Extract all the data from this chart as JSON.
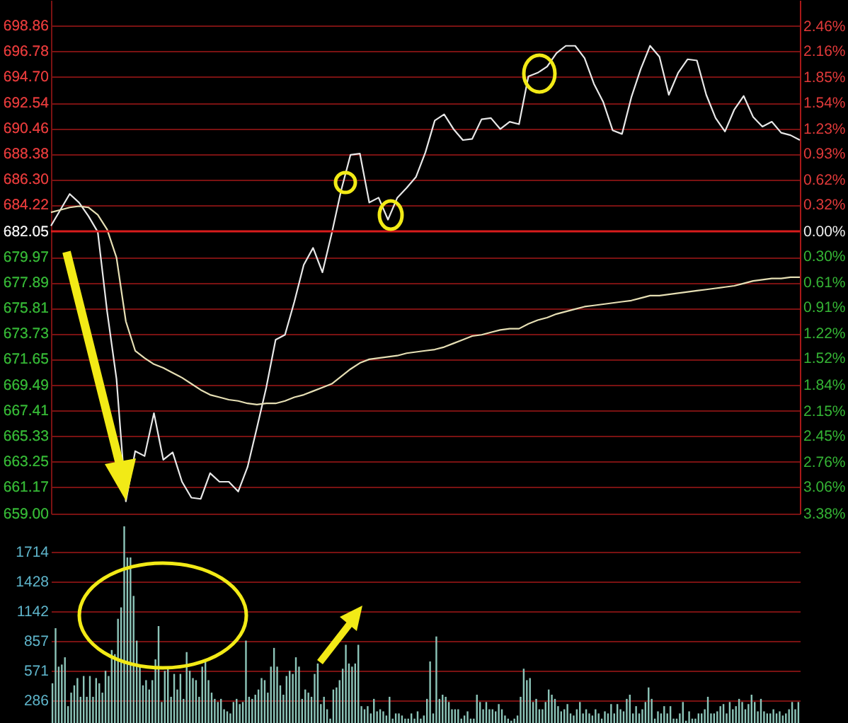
{
  "chart_data": [
    {
      "type": "line",
      "ylim": [
        659,
        700.94
      ],
      "categories": [
        null,
        null,
        null,
        null,
        null,
        null,
        null,
        null,
        null,
        null,
        null,
        null,
        null,
        null,
        null,
        null,
        null,
        null,
        null,
        null,
        null,
        null,
        null,
        null,
        null,
        null,
        null,
        null,
        null,
        null,
        null,
        null,
        null,
        null,
        null,
        null,
        null,
        null,
        null,
        null,
        null,
        null,
        null,
        null,
        null,
        null,
        null,
        null,
        null,
        null,
        null,
        null,
        null,
        null,
        null,
        null,
        null,
        null,
        null,
        null,
        null,
        null,
        null,
        null,
        null,
        null,
        null,
        null,
        null,
        null,
        null,
        null,
        null,
        null,
        null,
        null,
        null,
        null,
        null,
        null,
        null
      ],
      "yticks": [
        {
          "value": 659,
          "label": "659.00"
        },
        661.17,
        663.25,
        665.33,
        667.41,
        669.49,
        671.65,
        673.73,
        675.81,
        677.89,
        679.97,
        682.05,
        684.22,
        {
          "value": 686.3,
          "label": "686.30"
        },
        688.38,
        690.46,
        692.54,
        {
          "value": 694.7,
          "label": "694.70"
        },
        696.78,
        698.86
      ],
      "y2lim": [
        -3.38,
        2.77
      ],
      "y2ticks": [
        {
          "value": -3.38,
          "label": "3.38%"
        },
        {
          "value": -3.06,
          "label": "3.06%"
        },
        {
          "value": -2.76,
          "label": "2.76%"
        },
        {
          "value": -2.45,
          "label": "2.45%"
        },
        {
          "value": -2.15,
          "label": "2.15%"
        },
        {
          "value": -1.84,
          "label": "1.84%"
        },
        {
          "value": -1.52,
          "label": "1.52%"
        },
        {
          "value": -1.22,
          "label": "1.22%"
        },
        {
          "value": -0.91,
          "label": "0.91%"
        },
        {
          "value": -0.61,
          "label": "0.61%"
        },
        {
          "value": -0.3,
          "label": "0.30%"
        },
        {
          "value": 0,
          "label": "0.00%"
        },
        {
          "value": 0.32,
          "label": "0.32%"
        },
        {
          "value": 0.62,
          "label": "0.62%"
        },
        {
          "value": 0.93,
          "label": "0.93%"
        },
        {
          "value": 1.23,
          "label": "1.23%"
        },
        {
          "value": 1.54,
          "label": "1.54%"
        },
        {
          "value": 1.85,
          "label": "1.85%"
        },
        {
          "value": 2.16,
          "label": "2.16%"
        },
        {
          "value": 2.46,
          "label": "2.46%"
        }
      ],
      "grid": "y",
      "tick_labels": "y",
      "ref_lines": [
        {
          "axis": "y",
          "value": 682.05,
          "color": "#d81c1c"
        }
      ],
      "series": [
        {
          "color": "#e8e8e8",
          "values": [
            682.5,
            683.8,
            685.1,
            684.4,
            683.3,
            682.0,
            675.5,
            670.0,
            660.0,
            664.1,
            663.7,
            667.2,
            663.4,
            664.0,
            661.6,
            660.3,
            660.2,
            662.3,
            661.6,
            661.6,
            660.8,
            662.8,
            666.0,
            669.3,
            673.2,
            673.6,
            676.3,
            679.3,
            680.7,
            678.7,
            681.9,
            685.4,
            688.3,
            688.4,
            684.4,
            684.8,
            683.0,
            684.8,
            685.6,
            686.5,
            688.5,
            691.1,
            691.6,
            690.4,
            689.5,
            689.6,
            691.2,
            691.3,
            690.4,
            691.0,
            690.8,
            694.7,
            695.0,
            695.5,
            696.6,
            697.2,
            697.2,
            696.2,
            694.1,
            692.6,
            690.3,
            690.0,
            693.0,
            695.3,
            697.2,
            696.3,
            693.2,
            695.0,
            696.1,
            696.0,
            693.2,
            691.3,
            690.2,
            692.0,
            693.1,
            691.4,
            690.6,
            691.0,
            690.1,
            689.9,
            689.5
          ]
        },
        {
          "color": "#e6dfb4",
          "values": [
            683.6,
            683.8,
            684.0,
            684.1,
            684.0,
            683.4,
            682.2,
            679.9,
            674.7,
            672.3,
            671.7,
            671.2,
            670.9,
            670.5,
            670.1,
            669.6,
            669.1,
            668.7,
            668.5,
            668.3,
            668.2,
            668.0,
            667.9,
            668.0,
            668.0,
            668.2,
            668.5,
            668.7,
            669.0,
            669.3,
            669.6,
            670.2,
            670.8,
            671.3,
            671.6,
            671.7,
            671.8,
            671.9,
            672.1,
            672.2,
            672.3,
            672.4,
            672.6,
            672.9,
            673.2,
            673.5,
            673.6,
            673.8,
            674.0,
            674.1,
            674.1,
            674.5,
            674.8,
            675.0,
            675.3,
            675.5,
            675.7,
            675.9,
            676.0,
            676.1,
            676.2,
            676.3,
            676.4,
            676.6,
            676.8,
            676.8,
            676.9,
            677.0,
            677.1,
            677.2,
            677.3,
            677.4,
            677.5,
            677.6,
            677.8,
            678.0,
            678.1,
            678.2,
            678.2,
            678.3,
            678.3
          ]
        }
      ]
    },
    {
      "type": "bar",
      "color": "#8cc4b8",
      "ylim": [
        0,
        2000
      ],
      "yticks": [
        286,
        571,
        857,
        1142,
        1428,
        1714
      ],
      "grid": "y",
      "tick_labels": "y",
      "categories": [
        null,
        null,
        null,
        null,
        null,
        null,
        null,
        null,
        null,
        null,
        null,
        null,
        null,
        null,
        null,
        null,
        null,
        null,
        null,
        null,
        null,
        null,
        null,
        null,
        null,
        null,
        null,
        null,
        null,
        null,
        null,
        null,
        null,
        null,
        null,
        null,
        null,
        null,
        null,
        null,
        null,
        null,
        null,
        null,
        null,
        null,
        null,
        null,
        null,
        null,
        null,
        null,
        null,
        null,
        null,
        null,
        null,
        null,
        null,
        null,
        null,
        null,
        null,
        null,
        null,
        null,
        null,
        null,
        null,
        null,
        null,
        null,
        null,
        null,
        null,
        null,
        null,
        null,
        null,
        null,
        null,
        null,
        null,
        null,
        null,
        null,
        null,
        null,
        null,
        null,
        null,
        null,
        null,
        null,
        null,
        null,
        null,
        null,
        null,
        null,
        null,
        null,
        null,
        null,
        null,
        null,
        null,
        null,
        null,
        null,
        null,
        null,
        null,
        null,
        null,
        null,
        null,
        null,
        null,
        null,
        null,
        null,
        null,
        null,
        null,
        null,
        null,
        null,
        null,
        null,
        null,
        null,
        null,
        null,
        null,
        null,
        null,
        null,
        null,
        null,
        null,
        null,
        null,
        null,
        null,
        null,
        null,
        null,
        null,
        null,
        null,
        null,
        null,
        null,
        null,
        null,
        null,
        null,
        null,
        null,
        null,
        null,
        null,
        null,
        null,
        null,
        null,
        null,
        null,
        null,
        null,
        null,
        null,
        null,
        null,
        null,
        null,
        null,
        null,
        null,
        null,
        null,
        null,
        null,
        null,
        null,
        null,
        null,
        null,
        null,
        null,
        null,
        null,
        null,
        null,
        null,
        null,
        null,
        null,
        null,
        null,
        null,
        null,
        null,
        null,
        null,
        null,
        null,
        null,
        null,
        null,
        null,
        null,
        null,
        null,
        null,
        null,
        null,
        null,
        null,
        null,
        null,
        null,
        null,
        null,
        null,
        null,
        null,
        null,
        null,
        null,
        null,
        null,
        null,
        null,
        null,
        null,
        null,
        null,
        null
      ],
      "values": [
        450,
        980,
        610,
        630,
        700,
        230,
        360,
        430,
        500,
        320,
        520,
        320,
        520,
        320,
        500,
        450,
        360,
        570,
        520,
        770,
        730,
        1070,
        1180,
        1960,
        1660,
        1660,
        1290,
        860,
        610,
        430,
        480,
        390,
        480,
        680,
        1000,
        270,
        570,
        610,
        320,
        540,
        390,
        540,
        300,
        750,
        570,
        500,
        480,
        320,
        610,
        660,
        480,
        360,
        300,
        270,
        300,
        200,
        180,
        160,
        270,
        300,
        250,
        270,
        860,
        320,
        300,
        340,
        390,
        500,
        480,
        360,
        610,
        790,
        610,
        430,
        340,
        520,
        570,
        540,
        700,
        610,
        300,
        390,
        360,
        320,
        540,
        640,
        250,
        320,
        200,
        110,
        390,
        410,
        480,
        590,
        820,
        640,
        610,
        640,
        820,
        230,
        200,
        230,
        160,
        300,
        180,
        200,
        180,
        140,
        320,
        110,
        160,
        160,
        140,
        110,
        110,
        160,
        110,
        180,
        110,
        140,
        300,
        660,
        160,
        900,
        300,
        340,
        320,
        270,
        200,
        200,
        200,
        110,
        140,
        180,
        110,
        110,
        340,
        270,
        200,
        270,
        200,
        200,
        180,
        250,
        200,
        140,
        110,
        90,
        110,
        140,
        320,
        590,
        480,
        500,
        270,
        300,
        200,
        200,
        270,
        390,
        340,
        300,
        230,
        180,
        200,
        250,
        160,
        140,
        200,
        270,
        160,
        200,
        160,
        140,
        200,
        160,
        110,
        180,
        160,
        250,
        160,
        250,
        200,
        180,
        300,
        340,
        160,
        230,
        160,
        200,
        270,
        410,
        300,
        110,
        180,
        160,
        230,
        160,
        230,
        110,
        110,
        160,
        270,
        90,
        180,
        110,
        110,
        160,
        160,
        200,
        320,
        160,
        160,
        180,
        230,
        250,
        160,
        270,
        200,
        230,
        300,
        270,
        200,
        250,
        340,
        270,
        180,
        300,
        180,
        160,
        160,
        200,
        160,
        180,
        140,
        160,
        200,
        270,
        200,
        270
      ]
    }
  ]
}
